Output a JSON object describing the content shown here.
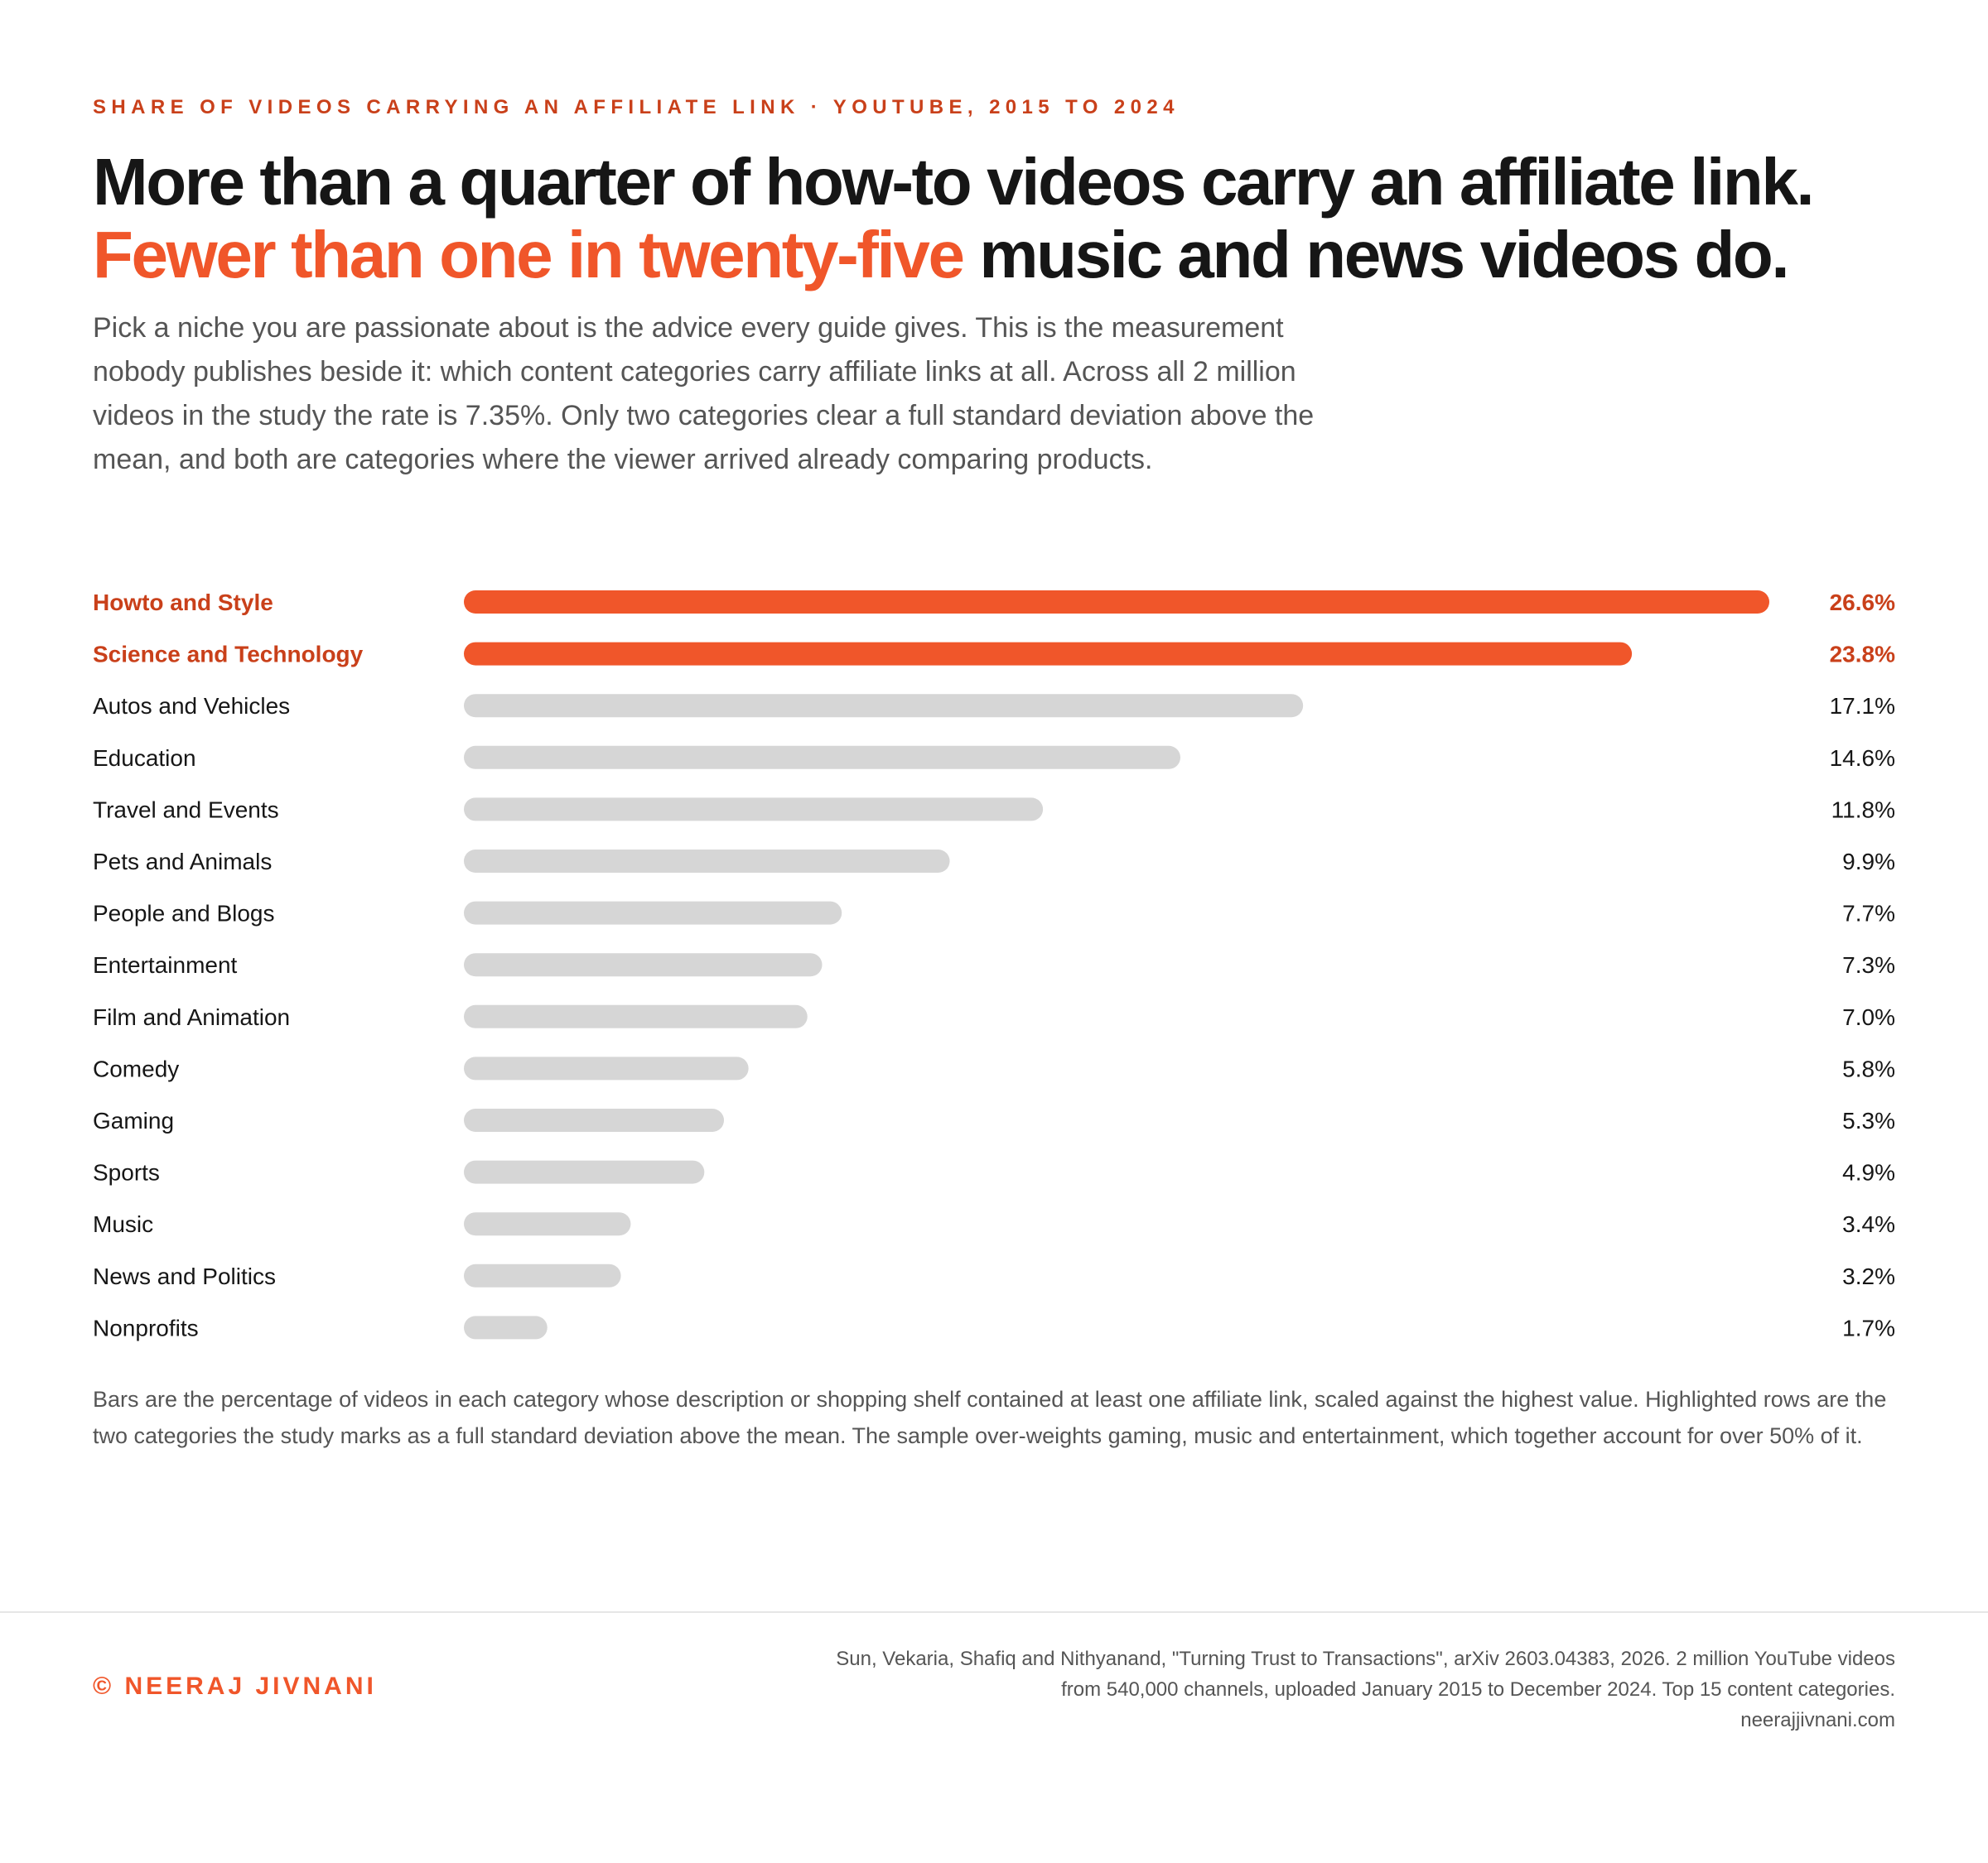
{
  "header": {
    "eyebrow": "SHARE OF VIDEOS CARRYING AN AFFILIATE LINK · YOUTUBE, 2015 TO 2024",
    "headline_line1": "More than a quarter of how-to videos carry an affiliate link.",
    "headline_line2_accent": "Fewer than one in twenty-five",
    "headline_line2_rest": " music and news videos do.",
    "intro": "Pick a niche you are passionate about is the advice every guide gives. This is the measurement nobody publishes beside it: which content categories carry affiliate links at all. Across all 2 million videos in the study the rate is 7.35%. Only two categories clear a full standard deviation above the mean, and both are categories where the viewer arrived already comparing products."
  },
  "chart_data": {
    "type": "bar",
    "orientation": "horizontal",
    "categories": [
      "Howto and Style",
      "Science and Technology",
      "Autos and Vehicles",
      "Education",
      "Travel and Events",
      "Pets and Animals",
      "People and Blogs",
      "Entertainment",
      "Film and Animation",
      "Comedy",
      "Gaming",
      "Sports",
      "Music",
      "News and Politics",
      "Nonprofits"
    ],
    "values": [
      26.6,
      23.8,
      17.1,
      14.6,
      11.8,
      9.9,
      7.7,
      7.3,
      7.0,
      5.8,
      5.3,
      4.9,
      3.4,
      3.2,
      1.7
    ],
    "value_labels": [
      "26.6%",
      "23.8%",
      "17.1%",
      "14.6%",
      "11.8%",
      "9.9%",
      "7.7%",
      "7.3%",
      "7.0%",
      "5.8%",
      "5.3%",
      "4.9%",
      "3.4%",
      "3.2%",
      "1.7%"
    ],
    "highlighted": [
      "Howto and Style",
      "Science and Technology"
    ],
    "xlim": [
      0,
      26.6
    ],
    "grid": false,
    "colors": {
      "highlight_bar": "#f0562a",
      "highlight_label": "#c9401a",
      "bar": "#d6d6d6",
      "label": "#161616"
    }
  },
  "notes": {
    "text": "Bars are the percentage of videos in each category whose description or shopping shelf contained at least one affiliate link, scaled against the highest value. Highlighted rows are the two categories the study marks as a full standard deviation above the mean. The sample over-weights gaming, music and entertainment, which together account for over 50% of it."
  },
  "footer": {
    "credit": "© NEERAJ JIVNANI",
    "source_line1": "Sun, Vekaria, Shafiq and Nithyanand, \"Turning Trust to Transactions\", arXiv 2603.04383, 2026. 2 million YouTube videos",
    "source_line2": "from 540,000 channels, uploaded January 2015 to December 2024. Top 15 content categories.",
    "source_line3": "neerajjivnani.com"
  }
}
